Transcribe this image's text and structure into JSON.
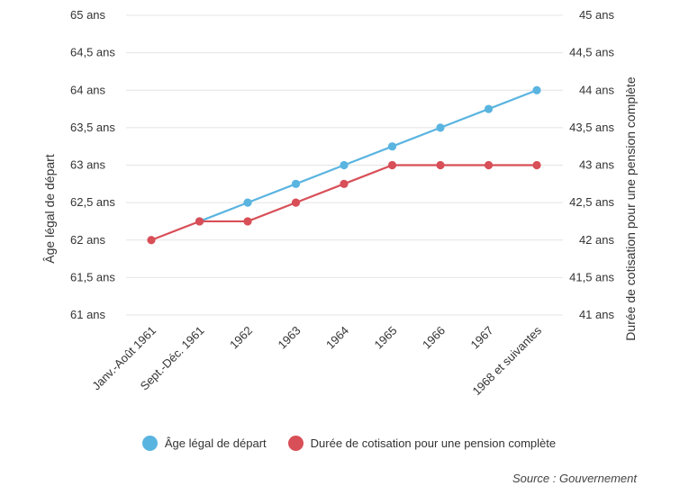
{
  "chart_data": {
    "type": "line",
    "categories": [
      "Janv.-Août 1961",
      "Sept.-Déc. 1961",
      "1962",
      "1963",
      "1964",
      "1965",
      "1966",
      "1967",
      "1968 et suivantes"
    ],
    "series": [
      {
        "name": "Âge légal de départ",
        "axis": "left",
        "color": "#5ab4e0",
        "values": [
          null,
          62.25,
          62.5,
          62.75,
          63,
          63.25,
          63.5,
          63.75,
          64
        ]
      },
      {
        "name": "Durée de cotisation pour une pension complète",
        "axis": "right",
        "color": "#d84f57",
        "values": [
          42,
          42.25,
          42.25,
          42.5,
          42.75,
          43,
          43,
          43,
          43
        ]
      }
    ],
    "ylabel": "Âge légal de départ",
    "ylabel_right": "Durée de cotisation pour une pension complète",
    "ylim": [
      61,
      65
    ],
    "ylim_right": [
      41,
      45
    ],
    "yticks": [
      "61 ans",
      "61,5 ans",
      "62 ans",
      "62,5 ans",
      "63 ans",
      "63,5 ans",
      "64 ans",
      "64,5 ans",
      "65 ans"
    ],
    "yticks_right": [
      "41 ans",
      "41,5 ans",
      "42 ans",
      "42,5 ans",
      "43 ans",
      "43,5 ans",
      "44 ans",
      "44,5 ans",
      "45 ans"
    ],
    "grid": true,
    "legend_position": "bottom"
  },
  "source": "Source : Gouvernement"
}
